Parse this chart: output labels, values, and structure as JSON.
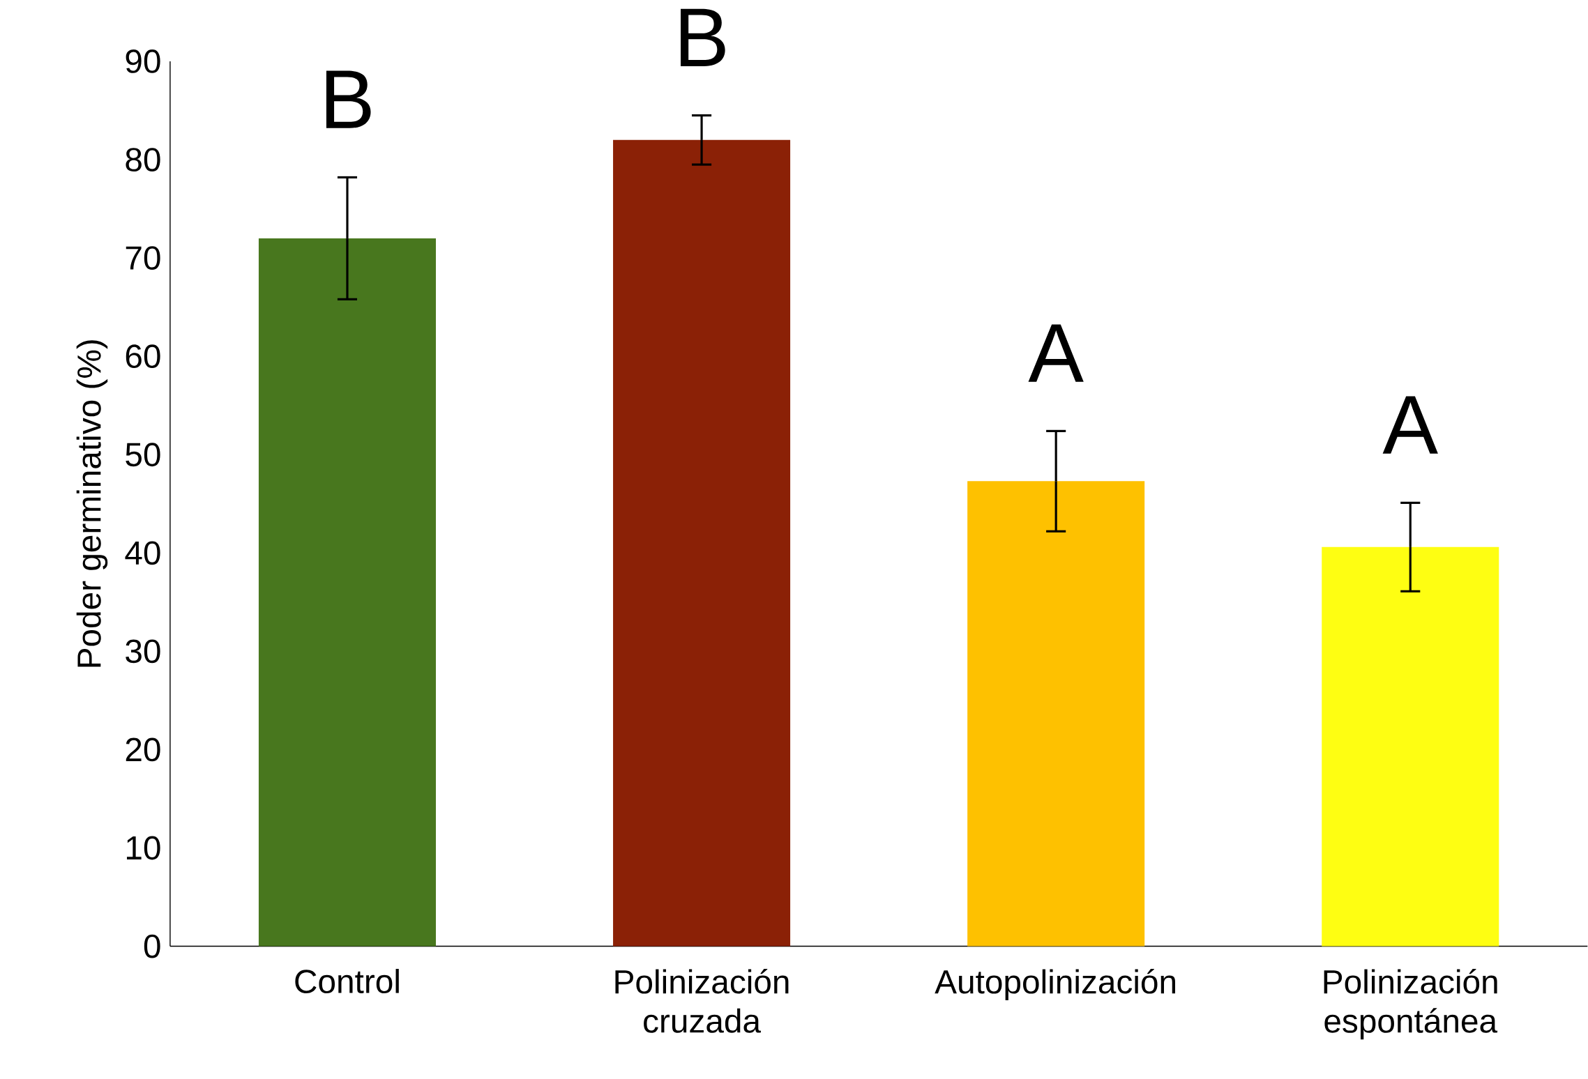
{
  "chart_data": {
    "type": "bar",
    "ylabel": "Poder germinativo (%)",
    "categories": [
      "Control",
      "Polinización cruzada",
      "Autopolinización",
      "Polinización espontánea"
    ],
    "values": [
      72,
      82,
      47.3,
      40.6
    ],
    "errors": [
      6.2,
      2.5,
      5.1,
      4.5
    ],
    "colors": [
      "#48771e",
      "#8b2106",
      "#fec100",
      "#fefe12"
    ],
    "ylim": [
      0,
      90
    ],
    "yticks": [
      0,
      10,
      20,
      30,
      40,
      50,
      60,
      70,
      80,
      90
    ],
    "grid": false,
    "annotations": [
      "B",
      "B",
      "A",
      "A"
    ]
  }
}
